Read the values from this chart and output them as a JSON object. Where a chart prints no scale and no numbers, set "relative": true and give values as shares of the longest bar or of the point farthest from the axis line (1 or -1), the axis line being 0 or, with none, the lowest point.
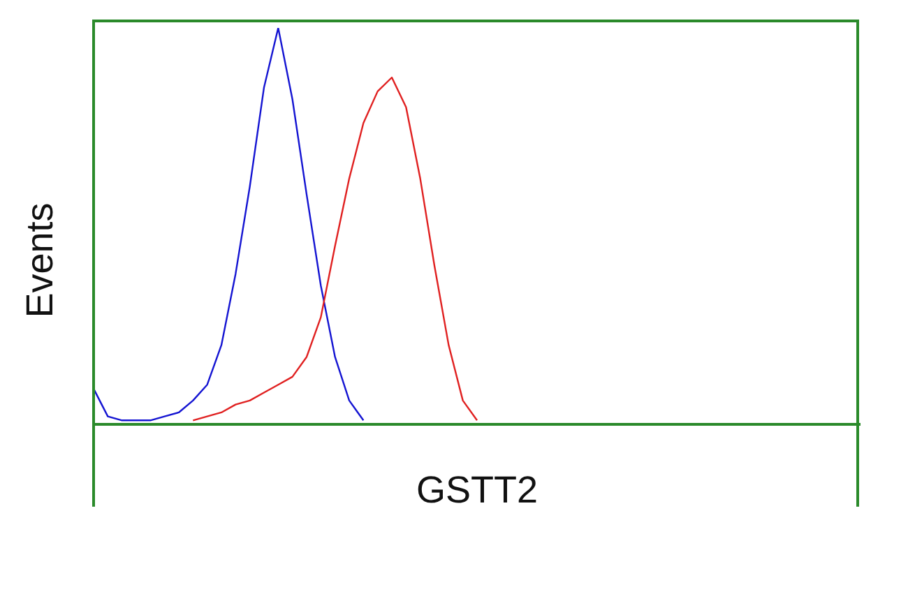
{
  "chart_data": {
    "type": "line",
    "xlabel": "GSTT2",
    "ylabel": "Events",
    "relative": true,
    "marker": "none",
    "grid": false,
    "legend": false,
    "categories": [
      null,
      null,
      null,
      null,
      null,
      null,
      null,
      null,
      null,
      null,
      null,
      null,
      null,
      null,
      null,
      null,
      null,
      null,
      null,
      null,
      null,
      null,
      null,
      null,
      null,
      null,
      null,
      null,
      null,
      null,
      null,
      null,
      null,
      null,
      null,
      null,
      null,
      null,
      null,
      null,
      null,
      null,
      null,
      null,
      null,
      null,
      null,
      null,
      null,
      null,
      null,
      null,
      null,
      null,
      null
    ],
    "series": [
      {
        "color": "#1414d2",
        "values": [
          0.09,
          0.02,
          0.01,
          0.01,
          0.01,
          0.02,
          0.03,
          0.06,
          0.1,
          0.2,
          0.38,
          0.6,
          0.85,
          1,
          0.82,
          0.58,
          0.35,
          0.17,
          0.06,
          0.01,
          null,
          null,
          null,
          null,
          null,
          null,
          null,
          null,
          null,
          null,
          null,
          null,
          null,
          null,
          null,
          null,
          null,
          null,
          null,
          null,
          null,
          null,
          null,
          null,
          null,
          null,
          null,
          null,
          null,
          null,
          null,
          null,
          null,
          null,
          null
        ]
      },
      {
        "color": "#e02020",
        "values": [
          null,
          null,
          null,
          null,
          null,
          null,
          null,
          0.01,
          0.02,
          0.03,
          0.05,
          0.06,
          0.08,
          0.1,
          0.12,
          0.17,
          0.27,
          0.45,
          0.62,
          0.76,
          0.84,
          0.875,
          0.8,
          0.62,
          0.4,
          0.2,
          0.06,
          0.01,
          null,
          null,
          null,
          null,
          null,
          null,
          null,
          null,
          null,
          null,
          null,
          null,
          null,
          null,
          null,
          null,
          null,
          null,
          null,
          null,
          null,
          null,
          null,
          null,
          null,
          null,
          null
        ]
      }
    ]
  }
}
